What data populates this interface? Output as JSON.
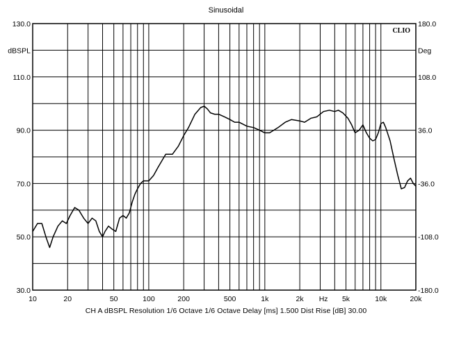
{
  "chart_data": {
    "type": "line",
    "title": "Sinusoidal",
    "brand": "CLIO",
    "ylabel_left": "dBSPL",
    "ylabel_right": "Deg",
    "x_scale": "log",
    "xlim": [
      10,
      20000
    ],
    "ylim": [
      30,
      130
    ],
    "y2lim": [
      -180,
      180
    ],
    "x_ticks": [
      10,
      20,
      50,
      100,
      200,
      500,
      1000,
      2000,
      5000,
      10000,
      20000
    ],
    "x_tick_labels": [
      "10",
      "20",
      "50",
      "100",
      "200",
      "500",
      "1k",
      "2k",
      "5k",
      "10k",
      "20k"
    ],
    "x_unit_label": "Hz",
    "y_ticks": [
      30,
      50,
      70,
      90,
      110,
      130
    ],
    "y_tick_labels": [
      "30.0",
      "50.0",
      "70.0",
      "90.0",
      "110.0",
      "130.0"
    ],
    "y2_ticks": [
      -180,
      -108,
      -36,
      36,
      108,
      180
    ],
    "y2_tick_labels": [
      "-180.0",
      "-108.0",
      "-36.0",
      "36.0",
      "108.0",
      "180.0"
    ],
    "grid": true,
    "series": [
      {
        "x": [
          10,
          11,
          12,
          13,
          14,
          15,
          16.5,
          18,
          19.5,
          21,
          23,
          25,
          27.5,
          30,
          32.5,
          35,
          37.5,
          40,
          42,
          45,
          48,
          52,
          56,
          60,
          64,
          68,
          72,
          76,
          80,
          85,
          90,
          95,
          100,
          110,
          120,
          140,
          160,
          180,
          200,
          220,
          250,
          280,
          300,
          320,
          340,
          370,
          400,
          450,
          500,
          550,
          600,
          700,
          800,
          900,
          1000,
          1100,
          1300,
          1500,
          1700,
          2000,
          2200,
          2500,
          2800,
          3200,
          3600,
          4000,
          4300,
          4700,
          5200,
          5600,
          6000,
          6500,
          7000,
          7500,
          8000,
          8500,
          9000,
          9500,
          10000,
          10500,
          11000,
          12000,
          13000,
          14000,
          15000,
          16000,
          17000,
          18000,
          19000,
          20000
        ],
        "y": [
          52,
          55,
          55,
          50,
          46,
          50,
          54,
          56,
          55,
          58,
          61,
          60,
          57,
          55,
          57,
          56,
          52,
          50,
          52,
          54,
          53,
          52,
          57,
          58,
          57,
          59,
          63,
          66,
          68,
          70,
          71,
          71,
          71,
          73,
          76,
          81,
          81,
          84,
          88,
          91,
          96,
          98.5,
          99,
          98,
          96.5,
          96,
          96,
          95,
          94,
          93,
          93,
          91.5,
          91,
          90,
          89,
          89,
          91,
          93,
          94,
          93.5,
          93,
          94.5,
          95,
          97,
          97.5,
          97,
          97.5,
          96.5,
          94.5,
          92,
          89,
          90,
          92,
          89,
          87,
          86,
          86.5,
          89,
          92.5,
          93,
          91,
          86,
          79,
          73,
          68,
          68.5,
          71,
          72,
          70,
          69
        ]
      }
    ]
  },
  "footer": "CH A dBSPL  Resolution 1/6 Octave  1/6 Octave  Delay [ms] 1.500  Dist Rise [dB] 30.00"
}
